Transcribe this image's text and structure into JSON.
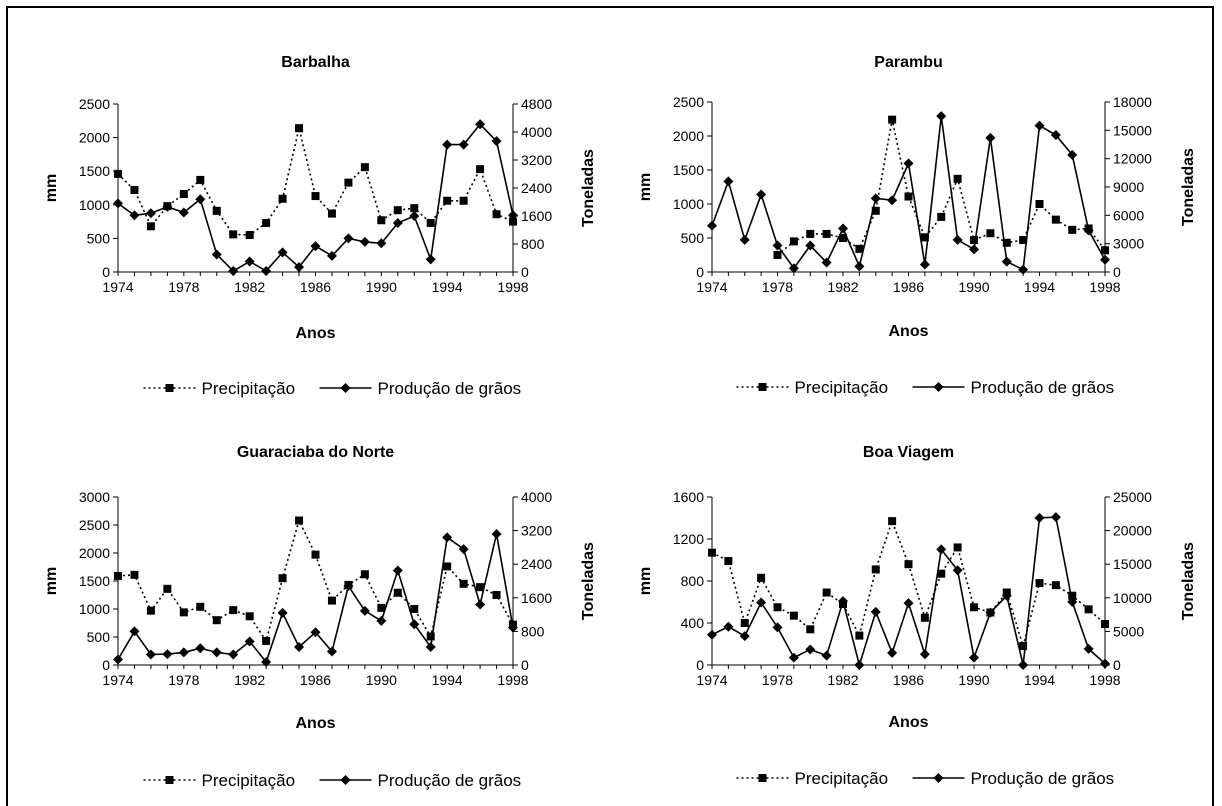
{
  "chart_data": [
    {
      "type": "line",
      "title": "Barbalha",
      "xlabel": "Anos",
      "ylabel": "mm",
      "y2label": "Toneladas",
      "x": [
        1974,
        1975,
        1976,
        1977,
        1978,
        1979,
        1980,
        1981,
        1982,
        1983,
        1984,
        1985,
        1986,
        1987,
        1988,
        1989,
        1990,
        1991,
        1992,
        1993,
        1994,
        1995,
        1996,
        1997,
        1998
      ],
      "xticks": [
        "1974",
        "1978",
        "1982",
        "1986",
        "1990",
        "1994",
        "1998"
      ],
      "ylim": [
        0,
        2500
      ],
      "yticks": [
        "0",
        "500",
        "1000",
        "1500",
        "2000",
        "2500"
      ],
      "y2lim": [
        0,
        4800
      ],
      "y2ticks": [
        "0",
        "800",
        "1600",
        "2400",
        "3200",
        "4000",
        "4800"
      ],
      "series": [
        {
          "name": "Precipitação",
          "axis": "left",
          "style": "dotted-square",
          "values": [
            1460,
            1220,
            680,
            980,
            1160,
            1370,
            910,
            560,
            550,
            730,
            1090,
            2140,
            1130,
            870,
            1330,
            1560,
            770,
            920,
            950,
            730,
            1060,
            1060,
            1530,
            860,
            750
          ]
        },
        {
          "name": "Produção de grãos",
          "axis": "right",
          "style": "solid-diamond",
          "values": [
            1960,
            1620,
            1680,
            1860,
            1700,
            2080,
            500,
            30,
            300,
            30,
            560,
            140,
            740,
            460,
            960,
            860,
            820,
            1400,
            1600,
            360,
            3640,
            3640,
            4220,
            3740,
            1620
          ]
        }
      ]
    },
    {
      "type": "line",
      "title": "Parambu",
      "xlabel": "Anos",
      "ylabel": "mm",
      "y2label": "Toneladas",
      "x": [
        1974,
        1975,
        1976,
        1977,
        1978,
        1979,
        1980,
        1981,
        1982,
        1983,
        1984,
        1985,
        1986,
        1987,
        1988,
        1989,
        1990,
        1991,
        1992,
        1993,
        1994,
        1995,
        1996,
        1997,
        1998
      ],
      "xticks": [
        "1974",
        "1978",
        "1982",
        "1986",
        "1990",
        "1994",
        "1998"
      ],
      "ylim": [
        0,
        2500
      ],
      "yticks": [
        "0",
        "500",
        "1000",
        "1500",
        "2000",
        "2500"
      ],
      "y2lim": [
        0,
        18000
      ],
      "y2ticks": [
        "0",
        "3000",
        "6000",
        "9000",
        "12000",
        "15000",
        "18000"
      ],
      "series": [
        {
          "name": "Precipitação",
          "axis": "left",
          "style": "dotted-square",
          "values": [
            null,
            null,
            null,
            null,
            250,
            450,
            560,
            560,
            500,
            340,
            900,
            2240,
            1110,
            510,
            810,
            1370,
            470,
            570,
            430,
            470,
            1000,
            770,
            620,
            640,
            320
          ]
        },
        {
          "name": "Produção de grãos",
          "axis": "right",
          "style": "solid-diamond",
          "values": [
            4900,
            9600,
            3400,
            8200,
            2800,
            400,
            2800,
            1000,
            4600,
            600,
            7800,
            7600,
            11500,
            800,
            16500,
            3400,
            2400,
            14200,
            1100,
            250,
            15500,
            14500,
            12400,
            4400,
            1300
          ]
        }
      ]
    },
    {
      "type": "line",
      "title": "Guaraciaba do Norte",
      "xlabel": "Anos",
      "ylabel": "mm",
      "y2label": "Toneladas",
      "x": [
        1974,
        1975,
        1976,
        1977,
        1978,
        1979,
        1980,
        1981,
        1982,
        1983,
        1984,
        1985,
        1986,
        1987,
        1988,
        1989,
        1990,
        1991,
        1992,
        1993,
        1994,
        1995,
        1996,
        1997,
        1998
      ],
      "xticks": [
        "1974",
        "1978",
        "1982",
        "1986",
        "1990",
        "1994",
        "1998"
      ],
      "ylim": [
        0,
        3000
      ],
      "yticks": [
        "0",
        "500",
        "1000",
        "1500",
        "2000",
        "2500",
        "3000"
      ],
      "y2lim": [
        0,
        4000
      ],
      "y2ticks": [
        "0",
        "800",
        "1600",
        "2400",
        "3200",
        "4000"
      ],
      "series": [
        {
          "name": "Precipitação",
          "axis": "left",
          "style": "dotted-square",
          "values": [
            1590,
            1610,
            970,
            1360,
            940,
            1040,
            800,
            980,
            870,
            430,
            1550,
            2580,
            1970,
            1150,
            1430,
            1620,
            1020,
            1290,
            1000,
            510,
            1760,
            1450,
            1390,
            1250,
            720
          ]
        },
        {
          "name": "Produção de grãos",
          "axis": "right",
          "style": "solid-diamond",
          "values": [
            130,
            800,
            250,
            260,
            300,
            400,
            300,
            250,
            560,
            70,
            1240,
            430,
            780,
            320,
            1880,
            1290,
            1050,
            2250,
            970,
            430,
            3040,
            2760,
            1440,
            3120,
            890
          ]
        }
      ]
    },
    {
      "type": "line",
      "title": "Boa Viagem",
      "xlabel": "Anos",
      "ylabel": "mm",
      "y2label": "Toneladas",
      "x": [
        1974,
        1975,
        1976,
        1977,
        1978,
        1979,
        1980,
        1981,
        1982,
        1983,
        1984,
        1985,
        1986,
        1987,
        1988,
        1989,
        1990,
        1991,
        1992,
        1993,
        1994,
        1995,
        1996,
        1997,
        1998
      ],
      "xticks": [
        "1974",
        "1978",
        "1982",
        "1986",
        "1990",
        "1994",
        "1998"
      ],
      "ylim": [
        0,
        1600
      ],
      "yticks": [
        "0",
        "400",
        "800",
        "1200",
        "1600"
      ],
      "y2lim": [
        0,
        25000
      ],
      "y2ticks": [
        "0",
        "5000",
        "10000",
        "15000",
        "20000",
        "25000"
      ],
      "series": [
        {
          "name": "Precipitação",
          "axis": "left",
          "style": "dotted-square",
          "values": [
            1070,
            990,
            400,
            830,
            550,
            470,
            340,
            690,
            580,
            280,
            910,
            1370,
            960,
            450,
            870,
            1120,
            550,
            500,
            690,
            180,
            780,
            760,
            660,
            530,
            390
          ]
        },
        {
          "name": "Produção de grãos",
          "axis": "right",
          "style": "solid-diamond",
          "values": [
            4500,
            5700,
            4300,
            9300,
            5600,
            1100,
            2300,
            1400,
            9500,
            0,
            7900,
            1800,
            9200,
            1600,
            17200,
            14100,
            1100,
            7800,
            10300,
            0,
            21900,
            22000,
            9400,
            2400,
            200
          ]
        }
      ]
    }
  ]
}
